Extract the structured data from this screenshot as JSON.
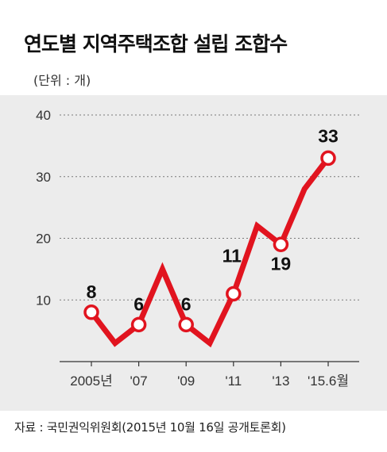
{
  "title": "연도별 지역주택조합 설립 조합수",
  "unit_label": "(단위 : 개)",
  "source": "자료 : 국민권익위원회(2015년 10월 16일 공개토론회)",
  "colors": {
    "line": "#e1141f",
    "grid": "#7a7a7a",
    "axis": "#333333",
    "plot_bg": "#ececec",
    "marker_fill": "#ffffff"
  },
  "chart_data": {
    "type": "line",
    "title": "연도별 지역주택조합 설립 조합수",
    "ylabel": "",
    "xlabel": "",
    "ylim": [
      0,
      40
    ],
    "yticks": [
      10,
      20,
      30,
      40
    ],
    "grid": true,
    "x": [
      2005,
      2006,
      2007,
      2008,
      2009,
      2010,
      2011,
      2012,
      2013,
      2014,
      2015
    ],
    "x_tick_positions": [
      2005,
      2007,
      2009,
      2011,
      2013,
      2015
    ],
    "x_tick_labels": [
      "2005년",
      "'07",
      "'09",
      "'11",
      "'13",
      "'15.6월"
    ],
    "series": [
      {
        "values": [
          8,
          3,
          6,
          15,
          6,
          3,
          11,
          22,
          19,
          28,
          33
        ],
        "labeled_points": [
          {
            "x": 2005,
            "y": 8,
            "label": "8"
          },
          {
            "x": 2007,
            "y": 6,
            "label": "6"
          },
          {
            "x": 2009,
            "y": 6,
            "label": "6"
          },
          {
            "x": 2011,
            "y": 11,
            "label": "11"
          },
          {
            "x": 2013,
            "y": 19,
            "label": "19"
          },
          {
            "x": 2015,
            "y": 33,
            "label": "33"
          }
        ]
      }
    ]
  }
}
